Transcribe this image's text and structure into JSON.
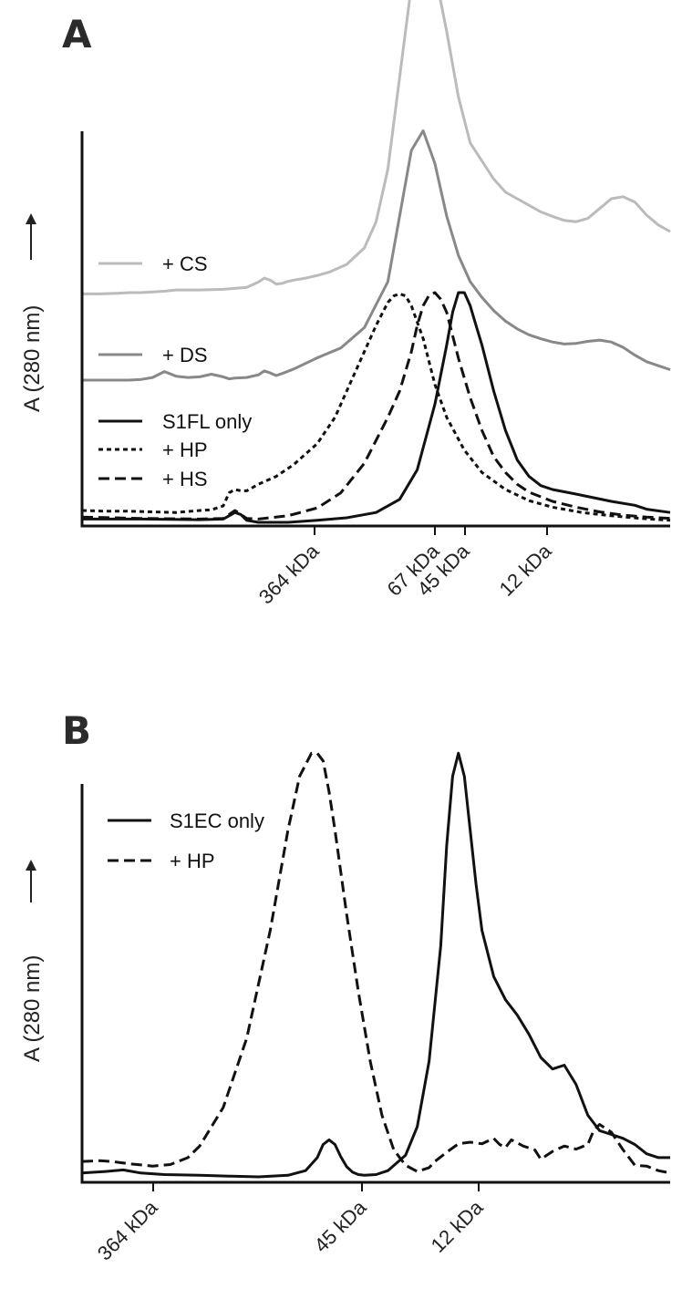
{
  "chart_data": [
    {
      "panel": "A",
      "type": "line",
      "ylabel": "A (280 nm)",
      "xticks": [
        "364 kDa",
        "67 kDa",
        "45 kDa",
        "12 kDa"
      ],
      "series": [
        {
          "name": "+ CS",
          "color": "#bbbbbb",
          "dash": "solid",
          "x": [
            0,
            3,
            6,
            8,
            10,
            12,
            14,
            16,
            20,
            24,
            28,
            30,
            31,
            32,
            33,
            34,
            35,
            36,
            38,
            40,
            42,
            45,
            48,
            50,
            52,
            54,
            56,
            58,
            60,
            62,
            64,
            66,
            70,
            72,
            74,
            76,
            78,
            80,
            82,
            84,
            86,
            88,
            90,
            92,
            94,
            96,
            98,
            100
          ],
          "y": [
            8,
            8,
            8.1,
            8.2,
            8.2,
            8.3,
            8.4,
            8.6,
            8.6,
            8.7,
            9,
            9.8,
            10.4,
            10.1,
            9.5,
            9.6,
            9.9,
            10.1,
            10.4,
            10.8,
            11.3,
            12.5,
            15,
            19,
            27,
            41,
            55,
            60,
            57,
            48,
            38,
            31,
            25.5,
            23.5,
            22.5,
            21.5,
            20.5,
            19.8,
            19.2,
            19,
            19.5,
            21,
            22.5,
            22.8,
            22,
            20,
            18.5,
            17.5
          ]
        },
        {
          "name": "+ DS",
          "color": "#888888",
          "dash": "solid",
          "x": [
            0,
            4,
            8,
            10,
            12,
            14,
            16,
            18,
            20,
            22,
            24,
            25,
            26,
            28,
            30,
            31,
            32,
            33,
            34,
            36,
            40,
            44,
            48,
            52,
            56,
            58,
            60,
            62,
            64,
            66,
            68,
            70,
            72,
            74,
            76,
            78,
            80,
            82,
            84,
            86,
            88,
            90,
            92,
            94,
            96,
            98,
            100
          ],
          "y": [
            0,
            0,
            0,
            0.1,
            0.4,
            1.3,
            0.6,
            0.4,
            0.5,
            0.9,
            0.5,
            0.2,
            0.3,
            0.4,
            0.8,
            1.4,
            1.1,
            0.7,
            1,
            1.7,
            3.4,
            4.9,
            8,
            15,
            35,
            38,
            33,
            25,
            19,
            15,
            12.6,
            10.6,
            9,
            7.8,
            6.9,
            6.3,
            5.8,
            5.5,
            5.6,
            5.9,
            6.1,
            5.8,
            5,
            3.8,
            2.8,
            2.2,
            1.6
          ]
        },
        {
          "name": "S1FL only",
          "color": "#111111",
          "dash": "solid",
          "x": [
            0,
            10,
            20,
            24,
            25,
            26,
            27,
            28,
            30,
            35,
            40,
            45,
            50,
            54,
            57,
            60,
            62,
            63,
            64,
            65,
            66,
            67,
            68,
            70,
            72,
            74,
            76,
            78,
            80,
            84,
            90,
            94,
            96,
            100
          ],
          "y": [
            0.5,
            0.5,
            0.4,
            0.5,
            1,
            1.5,
            1.2,
            0.3,
            0,
            0,
            0.3,
            0.7,
            1.5,
            3.5,
            8,
            18,
            27,
            32,
            35,
            35,
            33,
            30,
            27,
            20,
            14,
            9.5,
            7,
            5.6,
            5,
            4.3,
            3.2,
            2.6,
            2,
            1.5
          ]
        },
        {
          "name": "+ HP",
          "color": "#111111",
          "dash": "dotted",
          "x": [
            0,
            4,
            8,
            12,
            16,
            20,
            22,
            24,
            25,
            26,
            27,
            28,
            30,
            33,
            36,
            40,
            43,
            46,
            48,
            50,
            52,
            53,
            54,
            55,
            56,
            58,
            60,
            62,
            65,
            68,
            72,
            76,
            80,
            85,
            90,
            95,
            100
          ],
          "y": [
            1.8,
            1.7,
            1.7,
            1.6,
            1.5,
            1.8,
            1.9,
            2.5,
            4.5,
            5,
            4.8,
            4.8,
            5.8,
            7,
            8.8,
            12,
            16,
            22,
            26,
            30,
            33.5,
            34.5,
            34.8,
            34.5,
            33,
            28,
            21,
            16,
            11,
            7.6,
            5,
            3.3,
            2.3,
            1.5,
            1,
            0.6,
            0.3
          ]
        },
        {
          "name": "+ HS",
          "color": "#111111",
          "dash": "dashed",
          "x": [
            0,
            10,
            20,
            24,
            25,
            26,
            27,
            28,
            30,
            35,
            40,
            44,
            48,
            52,
            54,
            56,
            57,
            58,
            59,
            60,
            61,
            62,
            64,
            66,
            68,
            70,
            72,
            74,
            76,
            80,
            84,
            88,
            92,
            96,
            100
          ],
          "y": [
            0.8,
            0.6,
            0.5,
            0.6,
            1.2,
            1.8,
            1.2,
            0.6,
            0.5,
            1,
            2.2,
            4.5,
            9,
            16,
            20,
            26,
            30,
            33,
            34.6,
            35,
            34,
            32,
            25,
            19,
            14,
            10,
            7.6,
            5.8,
            4.6,
            3.2,
            2.3,
            1.6,
            1.1,
            0.8,
            0.6
          ]
        }
      ]
    },
    {
      "panel": "B",
      "type": "line",
      "ylabel": "A (280 nm)",
      "xticks": [
        "364 kDa",
        "45 kDa",
        "12 kDa"
      ],
      "series": [
        {
          "name": "S1EC only",
          "color": "#111111",
          "dash": "solid",
          "x": [
            0,
            4,
            7,
            10,
            14,
            20,
            25,
            30,
            35,
            38,
            40,
            41,
            42,
            43,
            44,
            45,
            46,
            47,
            48,
            50,
            52,
            55,
            57,
            59,
            61,
            62,
            63,
            64,
            65,
            66,
            67,
            68,
            70,
            72,
            74,
            76,
            78,
            80,
            82,
            84,
            86,
            88,
            90,
            92,
            94,
            96,
            98,
            100
          ],
          "y": [
            0.5,
            0.7,
            0.9,
            0.5,
            0.3,
            0.2,
            0.1,
            0,
            0.2,
            0.8,
            2.5,
            4.2,
            4.8,
            4.2,
            2.6,
            1.3,
            0.6,
            0.3,
            0.2,
            0.3,
            0.8,
            2.8,
            6.5,
            15,
            30,
            43,
            52,
            55,
            52,
            45,
            38,
            32,
            26,
            23,
            21,
            18.5,
            15.5,
            14,
            14.5,
            12,
            8,
            6,
            5.5,
            5,
            4.2,
            3,
            2.5,
            2.5
          ]
        },
        {
          "name": "+ HP",
          "color": "#111111",
          "dash": "dashed",
          "x": [
            0,
            3,
            5,
            8,
            12,
            15,
            18,
            20,
            24,
            28,
            32,
            35,
            37,
            39,
            40,
            41,
            42,
            43,
            45,
            47,
            49,
            51,
            53,
            55,
            57,
            59,
            60,
            62,
            64,
            66,
            68,
            70,
            71,
            72,
            73,
            75,
            77,
            78,
            80,
            82,
            84,
            86,
            87,
            88,
            90,
            92,
            94,
            96,
            98,
            100
          ],
          "y": [
            2,
            2.1,
            2,
            1.7,
            1.4,
            1.6,
            2.5,
            4,
            9,
            18,
            32,
            45,
            52,
            55,
            55,
            54,
            50,
            45,
            34,
            24,
            15,
            8,
            3.5,
            1.5,
            0.7,
            1.2,
            2,
            3.2,
            4.3,
            4.5,
            4.3,
            5,
            4.2,
            3.8,
            4.8,
            4,
            3.5,
            2.3,
            3.3,
            4,
            3.6,
            4.2,
            6,
            6.8,
            5.8,
            3.5,
            1.5,
            1.4,
            0.8,
            0.5
          ]
        }
      ]
    }
  ]
}
